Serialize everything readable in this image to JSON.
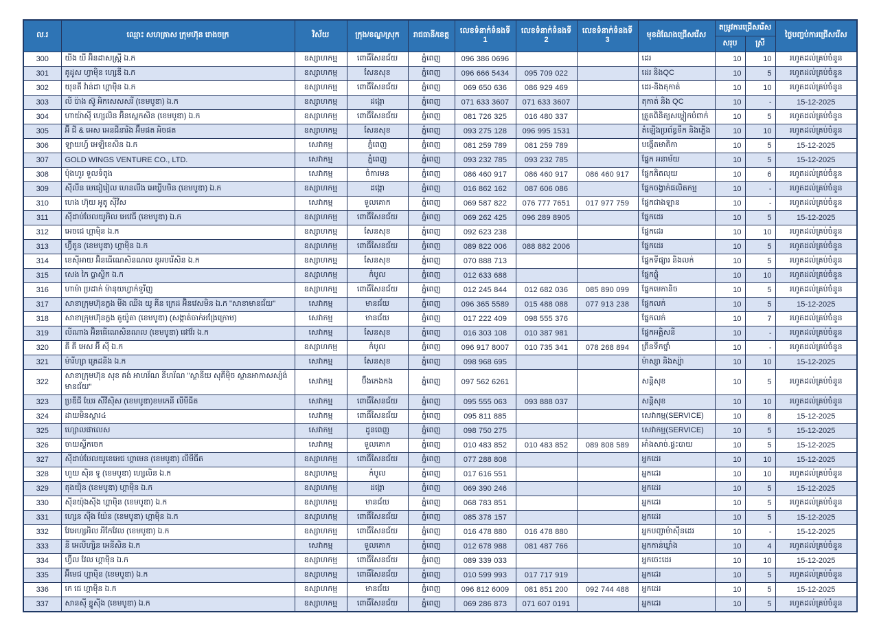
{
  "colors": {
    "header_bg": "#2e74b5",
    "header_text": "#ffffff",
    "alt_row_bg": "#d9e2f3",
    "row_bg": "#ffffff",
    "border": "#1f3864",
    "text": "#17233f"
  },
  "table": {
    "columns": {
      "no": "ល.រ",
      "name": "ឈ្មោះ សហគ្រាស ក្រុមហ៊ុន រោងចក្រ",
      "sector": "វិស័យ",
      "district": "ក្រុង/ខណ្ឌ/ស្រុក",
      "province": "រាជធានី/ខេត្ត",
      "tel1": "លេខទំនាក់ទំនងទី 1",
      "tel2": "លេខទំនាក់ទំនងទី 2",
      "tel3": "លេខទំនាក់ទំនងទី 3",
      "position": "មុខដំណែងជ្រើសរើស",
      "demand_group": "តម្រូវការជ្រើសរើស",
      "total": "សរុប",
      "female": "ស្រី",
      "end_date": "ថ្ងៃបញ្ចប់ការជ្រើសរើស"
    },
    "rows": [
      [
        300,
        "យីង យី អ៊ិនដាសស្ត្រី ឯ.ក",
        "ឧស្សាហកម្ម",
        "ពោធិ៍សែនជ័យ",
        "ភ្នំពេញ",
        "096 386 0696",
        "",
        "",
        "ដេរ",
        "10",
        "10",
        "រហូតដល់គ្រប់ចំនួន"
      ],
      [
        301,
        "គូដូស ហ្វាម៉ិន ហ្សេឌី ឯ.ក",
        "ឧស្សាហកម្ម",
        "សែនសុខ",
        "ភ្នំពេញ",
        "096 666 5434",
        "095 709 022",
        "",
        "ដេរ និងQC",
        "10",
        "5",
        "រហូតដល់គ្រប់ចំនួន"
      ],
      [
        302,
        "យុនតី វ៉ាន់ដា ហ្គាម៉ិន ឯ.ក",
        "ឧស្សាហកម្ម",
        "ពោធិ៍សែនជ័យ",
        "ភ្នំពេញ",
        "069 650 636",
        "086 929 469",
        "",
        "ដេរ-និងតុកាត់",
        "10",
        "10",
        "រហូតដល់គ្រប់ចំនួន"
      ],
      [
        303,
        "លី ប៉ាង ស៊ូ អិកសេសសរី (ខេមបូឌា) ឯ.ក",
        "ឧស្សាហកម្ម",
        "ដង្កោ",
        "ភ្នំពេញ",
        "071 633 3607",
        "071 633 3607",
        "",
        "តុកាត់ និង QC",
        "10",
        "-",
        "15-12-2025"
      ],
      [
        304,
        "ហាយ៉ាស៊ី ហ្សេលិន អ៊ិនស្ពេកសិន (ខេមបូឌា) ឯ.ក",
        "ឧស្សាហកម្ម",
        "ពោធិ៍សែនជ័យ",
        "ភ្នំពេញ",
        "081 726 325",
        "016 480 337",
        "",
        "ត្រួតពិនិត្យសម្លៀកបំពាក់",
        "10",
        "5",
        "រហូតដល់គ្រប់ចំនួន"
      ],
      [
        305,
        "អ៊ី ជី & អេស អេនជីនារិង អ៊ឹមផត អិចផត",
        "ឧស្សាហកម្ម",
        "សែនសុខ",
        "ភ្នំពេញ",
        "093 275 128",
        "096 995 1531",
        "",
        "តំឡើងប្រព័ន្ធទឹក និងភ្លើង",
        "10",
        "10",
        "រហូតដល់គ្រប់ចំនួន"
      ],
      [
        306,
        "ឡាយហ្វ៍ អេឡិខេសិន ឯ.ក",
        "សេវាកម្ម",
        "ភ្នំពេញ",
        "ភ្នំពេញ",
        "081 259 789",
        "081 259 789",
        "",
        "បង្កើតមាតិកា",
        "10",
        "5",
        "15-12-2025"
      ],
      [
        307,
        "GOLD WINGS VENTURE CO., LTD.",
        "សេវាកម្ម",
        "ភ្នំពេញ",
        "ភ្នំពេញ",
        "093 232 785",
        "093 232 785",
        "",
        "ផ្នែក អនាម័យ",
        "10",
        "5",
        "15-12-2025"
      ],
      [
        308,
        "ប៉ុងហួរ ទួលទំពូង",
        "សេវាកម្ម",
        "ចំការមន",
        "ភ្នំពេញ",
        "086 460 917",
        "086 460 917",
        "086 460 917",
        "ផ្នែកគិតលុយ",
        "10",
        "6",
        "រហូតដល់គ្រប់ចំនួន"
      ],
      [
        309,
        "ស៊ីលីន មេធៀរៀល ហេនលីង អេឃ្វីបមិន (ខេមបូឌា) ឯ.ក",
        "ឧស្សាហកម្ម",
        "ដង្កោ",
        "ភ្នំពេញ",
        "016 862 162",
        "087 606 086",
        "",
        "ផ្នែកចង្វាក់ផលិតកម្ម",
        "10",
        "-",
        "រហូតដល់គ្រប់ចំនួន"
      ],
      [
        310,
        "ហេង ហ៊ុយ អូតូ ស៊ីវីស",
        "សេវាកម្ម",
        "ទួលគោក",
        "ភ្នំពេញ",
        "069 587 822",
        "076 777 7651",
        "017 977 759",
        "ផ្នែកជាងឡាន",
        "10",
        "-",
        "រហូតដល់គ្រប់ចំនួន"
      ],
      [
        311,
        "ស៊ីដាប់បែលយូអិល អេវេធី (ខេមបូឌា) ឯ.ក",
        "ឧស្សាហកម្ម",
        "ពោធិ៍សែនជ័យ",
        "ភ្នំពេញ",
        "069 262 425",
        "096 289 8905",
        "",
        "ផ្នែកដេរ",
        "10",
        "5",
        "15-12-2025"
      ],
      [
        312,
        "អេចជេ ហ្គាម៉ិន ឯ.ក",
        "ឧស្សាហកម្ម",
        "សែនសុខ",
        "ភ្នំពេញ",
        "092 623 238",
        "",
        "",
        "ផ្នែកដេរ",
        "10",
        "10",
        "រហូតដល់គ្រប់ចំនួន"
      ],
      [
        313,
        "ហ្វ៊ីតូន (ខេមបូឌា) ហ្គាម៉ិន ឯ.ក",
        "ឧស្សាហកម្ម",
        "ពោធិ៍សែនជ័យ",
        "ភ្នំពេញ",
        "089 822 006",
        "088 882 2006",
        "",
        "ផ្នែកដេរ",
        "10",
        "5",
        "រហូតដល់គ្រប់ចំនួន"
      ],
      [
        314,
        "ខេស៊ីអាយ អ៊ិនធើណេសិនណល ខូអបរើសិន ឯ.ក",
        "ឧស្សាហកម្ម",
        "សែនសុខ",
        "ភ្នំពេញ",
        "070 888 713",
        "",
        "",
        "ផ្នែកទីផ្សារ និងលក់",
        "10",
        "5",
        "រហូតដល់គ្រប់ចំនួន"
      ],
      [
        315,
        "សេង កៃ ប្លាស្ទិក ឯ.ក",
        "ឧស្សាហកម្ម",
        "កំបូល",
        "ភ្នំពេញ",
        "012 633 688",
        "",
        "",
        "ផ្នែកផ្លុំ",
        "10",
        "10",
        "រហូតដល់គ្រប់ចំនួន"
      ],
      [
        316,
        "ហាម៉ា ប្រដាក់ ម៉ានុយហ្វាក់ទួរីញ",
        "ឧស្សាហកម្ម",
        "ពោធិ៍សែនជ័យ",
        "ភ្នំពេញ",
        "012 245 844",
        "012 682 036",
        "085 890 099",
        "ផ្នែកមេកានិច",
        "10",
        "5",
        "រហូតដល់គ្រប់ចំនួន"
      ],
      [
        317,
        "សាខាក្រុមហ៊ុនក្លង មីង ឈីង យូ គីន ក្រេដ អ៊ិនវេសមិន ឯ.ក \"សាខាមានជ័យ\"",
        "សេវាកម្ម",
        "មានជ័យ",
        "ភ្នំពេញ",
        "096 365 5589",
        "015 488 088",
        "077 913 238",
        "ផ្នែកលក់",
        "10",
        "5",
        "15-12-2025"
      ],
      [
        318,
        "សាខាក្រុមហ៊ុនក្លង តូយ៉ូតា (ខេមបូឌា) (សង្កាត់ចាក់អង្រែក្រោម)",
        "សេវាកម្ម",
        "មានជ័យ",
        "ភ្នំពេញ",
        "017 222 409",
        "098 555 376",
        "",
        "ផ្នែកលក់",
        "10",
        "7",
        "រហូតដល់គ្រប់ចំនួន"
      ],
      [
        319,
        "លីណាង អ៊ិនធើណេសិនណល (ខេមបូឌា) ផៅវ័រ ឯ.ក",
        "សេវាកម្ម",
        "សែនសុខ",
        "ភ្នំពេញ",
        "016 303 108",
        "010 387 981",
        "",
        "ផ្នែកអគ្គិសនី",
        "10",
        "-",
        "រហូតដល់គ្រប់ចំនួន"
      ],
      [
        320,
        "គី គី អេស អ៊ី ស៊ី ឯ.ក",
        "ឧស្សាហកម្ម",
        "កំបូល",
        "ភ្នំពេញ",
        "096 917 8007",
        "010 735 341",
        "078 268 894",
        "ព្រីនទឹកថ្នាំ",
        "10",
        "-",
        "រហូតដល់គ្រប់ចំនួន"
      ],
      [
        321,
        "ម៉ារីហ្សា ត្រេដនីង ឯ.ក",
        "សេវាកម្ម",
        "សែនសុខ",
        "ភ្នំពេញ",
        "098 968 695",
        "",
        "",
        "ម៉ាស្សា និងស្ប៉ា",
        "10",
        "10",
        "15-12-2025"
      ],
      [
        322,
        "សាខាក្រុមហ៊ុន សុខ គង់ អាហរ័ណ នីហរ័ណ \"ស្ថានីយ សុគីម៉ិច ស្ថានអាកាសស្យ៉ង់ មានជ័យ\"",
        "សេវាកម្ម",
        "ប៊ឹងកេងកង",
        "ភ្នំពេញ",
        "097 562 6261",
        "",
        "",
        "សន្តិសុខ",
        "10",
        "5",
        "រហូតដល់គ្រប់ចំនួន"
      ],
      [
        323,
        "ប្រឌីជី ឃែរ សឺវីស៊ិស (ខេមបូឌា)ខមកេនី លីមីធីត",
        "សេវាកម្ម",
        "ពោធិ៍សែនជ័យ",
        "ភ្នំពេញ",
        "095 555 063",
        "093 888 037",
        "",
        "សន្តិសុខ",
        "10",
        "10",
        "រហូតដល់គ្រប់ចំនួន"
      ],
      [
        324,
        "ដាយមិនស្តារ៤",
        "សេវាកម្ម",
        "ពោធិ៍សែនជ័យ",
        "ភ្នំពេញ",
        "095 811 885",
        "",
        "",
        "សេវាកម្ម(SERVICE)",
        "10",
        "8",
        "15-12-2025"
      ],
      [
        325,
        "ហ្សោលផាលេស",
        "សេវាកម្ម",
        "ដូនពេញ",
        "ភ្នំពេញ",
        "098 750 275",
        "",
        "",
        "សេវាកម្ម(SERVICE)",
        "10",
        "5",
        "15-12-2025"
      ],
      [
        326,
        "ចាយស្ទីកចេក",
        "សេវាកម្ម",
        "ទួលគោក",
        "ភ្នំពេញ",
        "010 483 852",
        "010 483 852",
        "089 808 589",
        "អាំងសាច់.ផ្ទះបាយ",
        "10",
        "5",
        "15-12-2025"
      ],
      [
        327,
        "ស៊ីដាប់បែលយូខេអេជ ហ្គាមេន (ខេមបូឌា) លីមីធីត",
        "ឧស្សាហកម្ម",
        "ពោធិ៍សែនជ័យ",
        "ភ្នំពេញ",
        "077 288 808",
        "",
        "",
        "អ្នកដេរ",
        "10",
        "10",
        "15-12-2025"
      ],
      [
        328,
        "ហួយ ស៊ិន ទូ (ខេមបូឌា) ហ្សេលិន ឯ.ក",
        "ឧស្សាហកម្ម",
        "កំបូល",
        "ភ្នំពេញ",
        "017 616 551",
        "",
        "",
        "អ្នកដេរ",
        "10",
        "10",
        "រហូតដល់គ្រប់ចំនួន"
      ],
      [
        329,
        "តុងយ៉ិន (ខេមបូឌា) ហ្គាម៉ិន ឯ.ក",
        "ឧស្សាហកម្ម",
        "ដង្កោ",
        "ភ្នំពេញ",
        "069 390 246",
        "",
        "",
        "អ្នកដេរ",
        "10",
        "5",
        "15-12-2025"
      ],
      [
        330,
        "ស៊ីនយ៉ុងស៊ីង ហ្គាម៉ិន (ខេមបូឌា) ឯ.ក",
        "ឧស្សាហកម្ម",
        "មានជ័យ",
        "ភ្នំពេញ",
        "068 783 851",
        "",
        "",
        "អ្នកដេរ",
        "10",
        "5",
        "រហូតដល់គ្រប់ចំនួន"
      ],
      [
        331,
        "ហ្សេន ស៊ីង យ៉ែន (ខេមបូឌា) ហ្គាម៉ិន ឯ.ក",
        "ឧស្សាហកម្ម",
        "ពោធិ៍សែនជ័យ",
        "ភ្នំពេញ",
        "085 378 157",
        "",
        "",
        "អ្នកដេរ",
        "10",
        "5",
        "15-12-2025"
      ],
      [
        332,
        "វែអេហ្សអិល អីកែវែល (ខេមបូឌា) ឯ.ក",
        "ឧស្សាហកម្ម",
        "ពោធិ៍សែនជ័យ",
        "ភ្នំពេញ",
        "016 478 880",
        "016 478 880",
        "",
        "អ្នកបញ្ជាម៉ាស៊ីនដេរ",
        "10",
        "-",
        "15-12-2025"
      ],
      [
        333,
        "នី អេលីហ្សិន អេនីសិន ឯ.ក",
        "សេវាកម្ម",
        "ទួលគោក",
        "ភ្នំពេញ",
        "012 678 988",
        "081 487 766",
        "",
        "អ្នកកាន់ឃ្លាំង",
        "10",
        "4",
        "រហូតដល់គ្រប់ចំនួន"
      ],
      [
        334,
        "ហ្វ៊ីល វែល ហ្គាម៉ិន ឯ.ក",
        "ឧស្សាហកម្ម",
        "ពោធិ៍សែនជ័យ",
        "ភ្នំពេញ",
        "089 339 033",
        "",
        "",
        "អ្នកចេះដេរ",
        "10",
        "10",
        "15-12-2025"
      ],
      [
        335,
        "អ៊ីមេជ ហ្គាម៉ិន (ខេមបូឌា) ឯ.ក",
        "ឧស្សាហកម្ម",
        "ពោធិ៍សែនជ័យ",
        "ភ្នំពេញ",
        "010 599 993",
        "017 717 919",
        "",
        "អ្នកដេរ",
        "10",
        "5",
        "រហូតដល់គ្រប់ចំនួន"
      ],
      [
        336,
        "កេ ជេ ហ្គាម៉ិន ឯ.ក",
        "ឧស្សាហកម្ម",
        "មានជ័យ",
        "ភ្នំពេញ",
        "096 812 6009",
        "081 851 200",
        "092 744 488",
        "អ្នកដេរ",
        "10",
        "5",
        "15-12-2025"
      ],
      [
        337,
        "សានស៊ី ខ្នូស៊ីង (ខេមបូឌា) ឯ.ក",
        "ឧស្សាហកម្ម",
        "ពោធិ៍សែនជ័យ",
        "ភ្នំពេញ",
        "069 286 873",
        "071 607 0191",
        "",
        "អ្នកដេរ",
        "10",
        "5",
        "រហូតដល់គ្រប់ចំនួន"
      ]
    ]
  }
}
